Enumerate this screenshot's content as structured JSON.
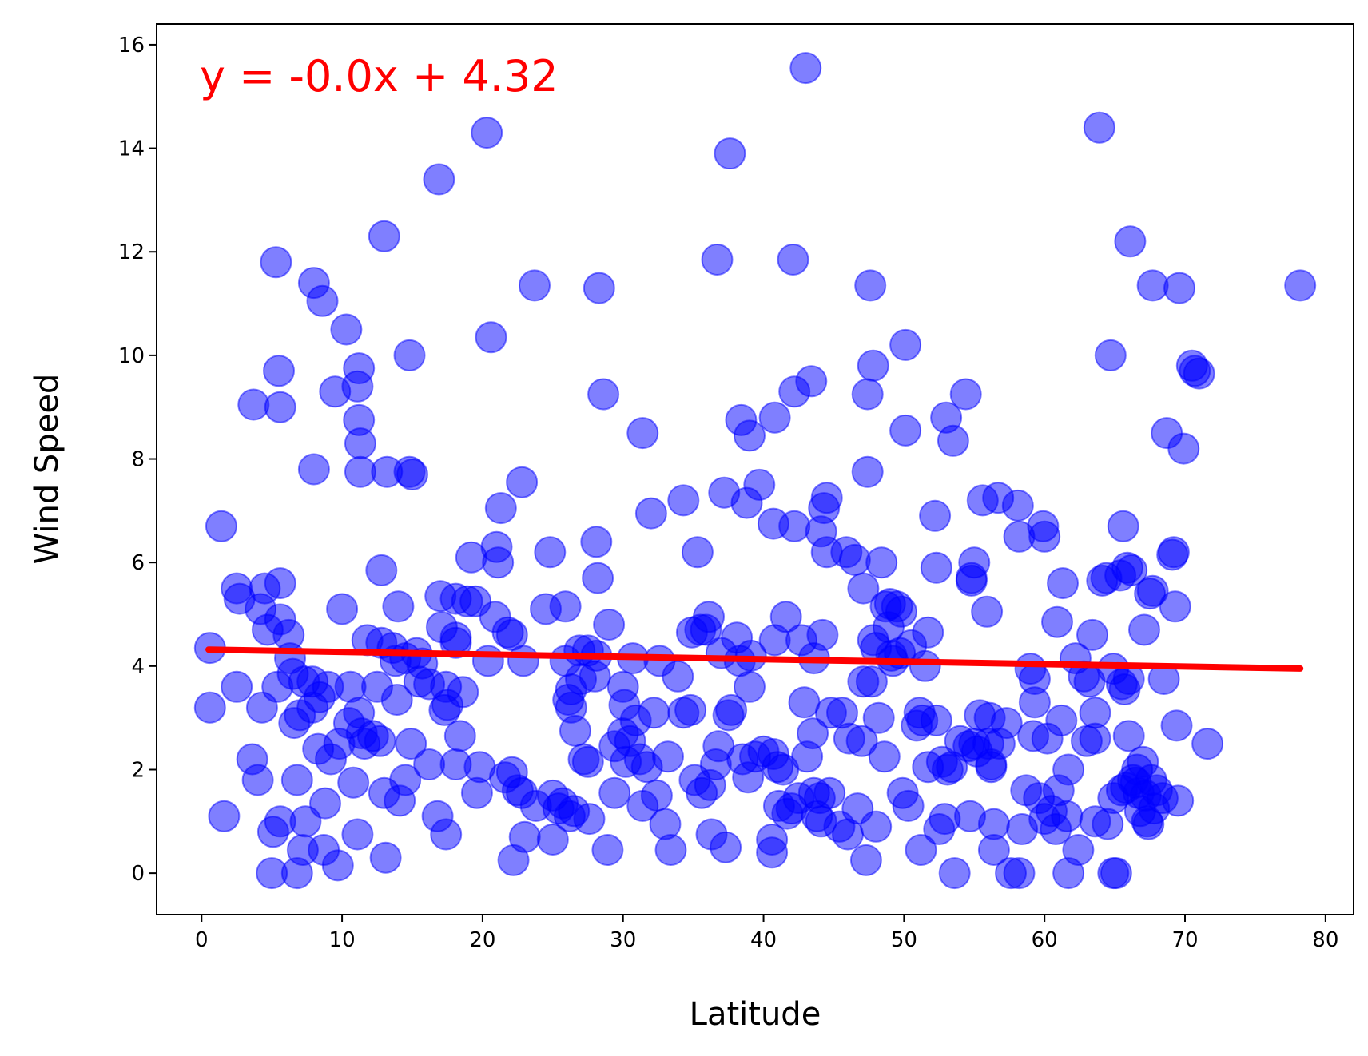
{
  "chart_data": {
    "type": "scatter",
    "title": "",
    "xlabel": "Latitude",
    "ylabel": "Wind Speed",
    "xlim": [
      -3.2,
      82
    ],
    "ylim": [
      -0.8,
      16.4
    ],
    "xticks": [
      0,
      10,
      20,
      30,
      40,
      50,
      60,
      70,
      80
    ],
    "yticks": [
      0,
      2,
      4,
      6,
      8,
      10,
      12,
      14,
      16
    ],
    "grid": false,
    "legend": "none",
    "annotation": "y = -0.0x + 4.32",
    "colors": {
      "points": "#0000ff",
      "regression": "#ff0000",
      "annotation": "#ff0000"
    },
    "regression": {
      "slope": -0.0047,
      "intercept": 4.32,
      "x_range": [
        0.5,
        78.2
      ]
    },
    "points": [
      [
        0.6,
        4.35
      ],
      [
        1.4,
        6.7
      ],
      [
        1.6,
        1.1
      ],
      [
        0.6,
        3.2
      ],
      [
        2.5,
        5.5
      ],
      [
        2.7,
        5.3
      ],
      [
        2.5,
        3.6
      ],
      [
        3.6,
        2.2
      ],
      [
        3.7,
        9.05
      ],
      [
        4.0,
        1.8
      ],
      [
        4.2,
        5.1
      ],
      [
        4.3,
        3.2
      ],
      [
        4.5,
        5.5
      ],
      [
        4.7,
        4.7
      ],
      [
        5.0,
        0.0
      ],
      [
        5.1,
        0.8
      ],
      [
        5.3,
        11.8
      ],
      [
        5.4,
        3.6
      ],
      [
        5.5,
        9.7
      ],
      [
        5.6,
        9.0
      ],
      [
        5.6,
        5.6
      ],
      [
        5.6,
        4.9
      ],
      [
        5.6,
        1.0
      ],
      [
        6.2,
        4.6
      ],
      [
        6.3,
        4.15
      ],
      [
        6.5,
        3.85
      ],
      [
        6.6,
        2.9
      ],
      [
        6.8,
        0.0
      ],
      [
        6.8,
        1.8
      ],
      [
        7.0,
        3.05
      ],
      [
        7.2,
        0.45
      ],
      [
        7.3,
        3.7
      ],
      [
        7.4,
        1.0
      ],
      [
        7.9,
        3.7
      ],
      [
        7.9,
        3.2
      ],
      [
        8.0,
        11.4
      ],
      [
        8.0,
        7.8
      ],
      [
        8.3,
        2.4
      ],
      [
        8.4,
        3.4
      ],
      [
        8.6,
        11.05
      ],
      [
        8.7,
        0.45
      ],
      [
        9.0,
        3.6
      ],
      [
        8.8,
        1.35
      ],
      [
        9.2,
        2.2
      ],
      [
        9.5,
        9.3
      ],
      [
        9.8,
        2.5
      ],
      [
        9.7,
        0.15
      ],
      [
        10.0,
        5.1
      ],
      [
        10.3,
        10.5
      ],
      [
        10.5,
        2.9
      ],
      [
        10.6,
        3.6
      ],
      [
        10.8,
        1.75
      ],
      [
        11.1,
        9.4
      ],
      [
        11.1,
        0.75
      ],
      [
        11.2,
        9.75
      ],
      [
        11.2,
        8.75
      ],
      [
        11.3,
        8.3
      ],
      [
        11.3,
        7.75
      ],
      [
        11.2,
        3.1
      ],
      [
        11.4,
        2.7
      ],
      [
        11.6,
        2.5
      ],
      [
        11.8,
        4.5
      ],
      [
        12.2,
        2.65
      ],
      [
        12.5,
        3.6
      ],
      [
        12.7,
        2.55
      ],
      [
        12.8,
        5.85
      ],
      [
        12.8,
        4.45
      ],
      [
        13.0,
        12.3
      ],
      [
        13.1,
        0.3
      ],
      [
        13.0,
        1.55
      ],
      [
        13.2,
        7.75
      ],
      [
        13.6,
        4.35
      ],
      [
        13.8,
        4.1
      ],
      [
        13.9,
        3.35
      ],
      [
        14.0,
        5.15
      ],
      [
        14.1,
        1.4
      ],
      [
        14.5,
        4.15
      ],
      [
        14.5,
        1.8
      ],
      [
        14.8,
        7.75
      ],
      [
        14.8,
        10.0
      ],
      [
        14.9,
        2.5
      ],
      [
        15.0,
        7.7
      ],
      [
        15.3,
        4.25
      ],
      [
        15.5,
        3.7
      ],
      [
        15.7,
        4.05
      ],
      [
        16.2,
        2.1
      ],
      [
        16.2,
        3.65
      ],
      [
        16.8,
        1.1
      ],
      [
        16.9,
        13.4
      ],
      [
        17.0,
        5.35
      ],
      [
        17.1,
        4.75
      ],
      [
        17.3,
        3.15
      ],
      [
        17.4,
        3.6
      ],
      [
        17.4,
        0.75
      ],
      [
        17.5,
        3.25
      ],
      [
        18.1,
        5.3
      ],
      [
        18.1,
        4.55
      ],
      [
        18.1,
        4.45
      ],
      [
        18.1,
        2.1
      ],
      [
        18.4,
        2.65
      ],
      [
        18.6,
        3.5
      ],
      [
        18.9,
        5.25
      ],
      [
        19.2,
        6.1
      ],
      [
        19.5,
        5.25
      ],
      [
        19.6,
        1.55
      ],
      [
        19.8,
        2.05
      ],
      [
        20.3,
        14.3
      ],
      [
        20.4,
        4.1
      ],
      [
        20.6,
        10.35
      ],
      [
        20.9,
        4.95
      ],
      [
        21.0,
        6.3
      ],
      [
        21.1,
        6.0
      ],
      [
        21.3,
        7.05
      ],
      [
        21.6,
        1.85
      ],
      [
        21.8,
        4.65
      ],
      [
        22.1,
        4.6
      ],
      [
        22.1,
        1.95
      ],
      [
        22.2,
        0.25
      ],
      [
        22.5,
        1.6
      ],
      [
        22.8,
        1.55
      ],
      [
        22.8,
        7.55
      ],
      [
        22.9,
        4.1
      ],
      [
        23.0,
        0.7
      ],
      [
        23.7,
        11.35
      ],
      [
        23.8,
        1.3
      ],
      [
        24.5,
        5.1
      ],
      [
        24.8,
        6.2
      ],
      [
        25.0,
        1.5
      ],
      [
        25.0,
        0.65
      ],
      [
        25.4,
        1.25
      ],
      [
        25.7,
        1.35
      ],
      [
        25.9,
        4.1
      ],
      [
        25.9,
        5.15
      ],
      [
        26.1,
        3.35
      ],
      [
        26.3,
        3.55
      ],
      [
        26.3,
        3.2
      ],
      [
        26.2,
        1.1
      ],
      [
        26.5,
        1.2
      ],
      [
        26.6,
        2.75
      ],
      [
        26.9,
        4.3
      ],
      [
        27.0,
        3.75
      ],
      [
        27.2,
        2.2
      ],
      [
        27.5,
        2.15
      ],
      [
        27.5,
        4.3
      ],
      [
        27.6,
        1.05
      ],
      [
        28.0,
        3.8
      ],
      [
        28.1,
        6.4
      ],
      [
        28.1,
        4.2
      ],
      [
        28.2,
        5.7
      ],
      [
        28.3,
        11.3
      ],
      [
        28.6,
        9.25
      ],
      [
        28.9,
        0.45
      ],
      [
        29.0,
        4.8
      ],
      [
        29.4,
        2.45
      ],
      [
        29.4,
        1.55
      ],
      [
        30.0,
        2.7
      ],
      [
        30.0,
        3.6
      ],
      [
        30.1,
        3.25
      ],
      [
        30.2,
        2.15
      ],
      [
        30.5,
        2.55
      ],
      [
        30.7,
        4.15
      ],
      [
        30.9,
        2.95
      ],
      [
        31.2,
        2.2
      ],
      [
        31.4,
        8.5
      ],
      [
        31.4,
        1.3
      ],
      [
        31.7,
        2.05
      ],
      [
        32.0,
        6.95
      ],
      [
        32.2,
        3.1
      ],
      [
        32.4,
        1.5
      ],
      [
        32.6,
        4.1
      ],
      [
        33.0,
        0.95
      ],
      [
        33.2,
        2.25
      ],
      [
        33.4,
        0.45
      ],
      [
        33.9,
        3.8
      ],
      [
        34.3,
        3.1
      ],
      [
        34.3,
        7.2
      ],
      [
        34.8,
        3.15
      ],
      [
        34.9,
        4.65
      ],
      [
        35.1,
        1.8
      ],
      [
        35.3,
        6.2
      ],
      [
        35.5,
        4.7
      ],
      [
        35.6,
        1.55
      ],
      [
        35.9,
        4.7
      ],
      [
        36.1,
        4.95
      ],
      [
        36.2,
        1.7
      ],
      [
        36.3,
        0.75
      ],
      [
        36.6,
        2.1
      ],
      [
        36.8,
        2.45
      ],
      [
        36.7,
        11.85
      ],
      [
        37.0,
        4.25
      ],
      [
        37.2,
        7.35
      ],
      [
        37.3,
        0.5
      ],
      [
        37.5,
        3.05
      ],
      [
        37.6,
        13.9
      ],
      [
        37.7,
        3.15
      ],
      [
        38.1,
        4.55
      ],
      [
        38.3,
        4.1
      ],
      [
        38.4,
        8.75
      ],
      [
        38.5,
        2.2
      ],
      [
        38.8,
        7.15
      ],
      [
        38.9,
        1.85
      ],
      [
        39.0,
        8.45
      ],
      [
        39.0,
        3.6
      ],
      [
        39.1,
        4.2
      ],
      [
        39.4,
        2.25
      ],
      [
        39.7,
        7.5
      ],
      [
        40.0,
        2.35
      ],
      [
        40.6,
        0.4
      ],
      [
        40.6,
        0.65
      ],
      [
        40.7,
        6.75
      ],
      [
        40.8,
        4.5
      ],
      [
        40.7,
        2.3
      ],
      [
        40.8,
        8.8
      ],
      [
        41.0,
        2.05
      ],
      [
        41.1,
        1.3
      ],
      [
        41.4,
        2.0
      ],
      [
        41.6,
        4.95
      ],
      [
        41.7,
        1.15
      ],
      [
        42.0,
        1.25
      ],
      [
        42.1,
        11.85
      ],
      [
        42.2,
        9.3
      ],
      [
        42.2,
        6.7
      ],
      [
        42.5,
        1.45
      ],
      [
        42.7,
        4.5
      ],
      [
        42.9,
        3.3
      ],
      [
        43.0,
        15.55
      ],
      [
        43.1,
        2.25
      ],
      [
        43.4,
        9.5
      ],
      [
        43.5,
        2.7
      ],
      [
        43.6,
        1.55
      ],
      [
        43.6,
        4.15
      ],
      [
        43.8,
        1.1
      ],
      [
        44.0,
        1.45
      ],
      [
        44.1,
        6.6
      ],
      [
        44.1,
        1.0
      ],
      [
        44.2,
        4.6
      ],
      [
        44.3,
        7.05
      ],
      [
        44.5,
        7.25
      ],
      [
        44.5,
        6.2
      ],
      [
        44.7,
        1.55
      ],
      [
        44.8,
        3.1
      ],
      [
        45.4,
        0.9
      ],
      [
        45.6,
        3.1
      ],
      [
        45.9,
        6.2
      ],
      [
        46.0,
        0.75
      ],
      [
        46.1,
        2.6
      ],
      [
        46.5,
        6.05
      ],
      [
        46.7,
        1.25
      ],
      [
        47.0,
        2.55
      ],
      [
        47.1,
        5.5
      ],
      [
        47.1,
        3.7
      ],
      [
        47.3,
        0.25
      ],
      [
        47.4,
        9.25
      ],
      [
        47.4,
        7.75
      ],
      [
        47.6,
        11.35
      ],
      [
        47.7,
        3.7
      ],
      [
        47.8,
        4.5
      ],
      [
        47.8,
        9.8
      ],
      [
        48.0,
        4.35
      ],
      [
        48.0,
        0.9
      ],
      [
        48.2,
        3.0
      ],
      [
        48.4,
        6.0
      ],
      [
        48.6,
        2.25
      ],
      [
        48.7,
        5.15
      ],
      [
        48.9,
        4.75
      ],
      [
        49.0,
        5.2
      ],
      [
        49.1,
        4.2
      ],
      [
        49.2,
        4.1
      ],
      [
        49.5,
        5.15
      ],
      [
        49.7,
        4.25
      ],
      [
        49.8,
        5.05
      ],
      [
        49.9,
        1.55
      ],
      [
        50.1,
        10.2
      ],
      [
        50.1,
        8.55
      ],
      [
        50.3,
        1.3
      ],
      [
        50.5,
        4.4
      ],
      [
        50.9,
        2.85
      ],
      [
        51.1,
        3.1
      ],
      [
        51.2,
        0.45
      ],
      [
        51.3,
        2.95
      ],
      [
        51.5,
        4.0
      ],
      [
        51.7,
        4.65
      ],
      [
        51.7,
        2.05
      ],
      [
        52.2,
        6.9
      ],
      [
        52.3,
        5.9
      ],
      [
        52.3,
        2.95
      ],
      [
        52.5,
        0.85
      ],
      [
        52.7,
        2.15
      ],
      [
        52.9,
        1.05
      ],
      [
        53.0,
        8.8
      ],
      [
        53.1,
        2.0
      ],
      [
        53.4,
        2.05
      ],
      [
        53.5,
        8.35
      ],
      [
        53.6,
        0.0
      ],
      [
        54.0,
        2.55
      ],
      [
        54.4,
        9.25
      ],
      [
        54.6,
        2.45
      ],
      [
        54.7,
        1.1
      ],
      [
        54.8,
        5.65
      ],
      [
        54.8,
        5.7
      ],
      [
        55.0,
        6.0
      ],
      [
        55.0,
        2.5
      ],
      [
        55.2,
        2.35
      ],
      [
        55.4,
        3.05
      ],
      [
        55.6,
        7.2
      ],
      [
        55.9,
        5.05
      ],
      [
        56.0,
        2.5
      ],
      [
        56.1,
        3.0
      ],
      [
        56.2,
        2.05
      ],
      [
        56.2,
        2.1
      ],
      [
        56.4,
        0.95
      ],
      [
        56.4,
        0.45
      ],
      [
        56.7,
        7.25
      ],
      [
        56.8,
        2.5
      ],
      [
        57.3,
        2.9
      ],
      [
        57.6,
        0.0
      ],
      [
        58.1,
        7.1
      ],
      [
        58.2,
        0.0
      ],
      [
        58.2,
        6.5
      ],
      [
        58.4,
        0.85
      ],
      [
        58.7,
        1.6
      ],
      [
        59.0,
        3.95
      ],
      [
        59.2,
        2.65
      ],
      [
        59.3,
        3.75
      ],
      [
        59.3,
        3.3
      ],
      [
        59.6,
        1.45
      ],
      [
        59.9,
        6.7
      ],
      [
        60.0,
        6.5
      ],
      [
        60.0,
        1.05
      ],
      [
        60.2,
        2.6
      ],
      [
        60.5,
        1.2
      ],
      [
        60.8,
        0.85
      ],
      [
        60.9,
        4.85
      ],
      [
        61.0,
        1.6
      ],
      [
        61.2,
        2.95
      ],
      [
        61.3,
        5.6
      ],
      [
        61.7,
        2.0
      ],
      [
        61.6,
        1.1
      ],
      [
        61.7,
        0.0
      ],
      [
        62.2,
        4.15
      ],
      [
        62.4,
        0.45
      ],
      [
        62.8,
        3.8
      ],
      [
        63.0,
        2.55
      ],
      [
        63.2,
        3.7
      ],
      [
        63.4,
        4.6
      ],
      [
        63.6,
        1.0
      ],
      [
        63.6,
        3.1
      ],
      [
        63.6,
        2.6
      ],
      [
        63.9,
        14.4
      ],
      [
        64.1,
        5.65
      ],
      [
        64.4,
        5.7
      ],
      [
        64.5,
        0.95
      ],
      [
        64.7,
        10.0
      ],
      [
        64.9,
        0.0
      ],
      [
        64.9,
        3.95
      ],
      [
        64.9,
        1.45
      ],
      [
        65.1,
        0.0
      ],
      [
        65.4,
        5.75
      ],
      [
        65.5,
        3.65
      ],
      [
        65.5,
        1.6
      ],
      [
        65.6,
        6.7
      ],
      [
        65.7,
        3.55
      ],
      [
        65.8,
        1.65
      ],
      [
        65.9,
        5.9
      ],
      [
        66.0,
        3.75
      ],
      [
        66.0,
        2.65
      ],
      [
        66.2,
        5.85
      ],
      [
        66.1,
        12.2
      ],
      [
        66.3,
        1.8
      ],
      [
        66.5,
        1.75
      ],
      [
        66.6,
        2.0
      ],
      [
        66.7,
        1.55
      ],
      [
        66.8,
        1.2
      ],
      [
        67.0,
        2.15
      ],
      [
        67.1,
        4.7
      ],
      [
        67.2,
        1.5
      ],
      [
        67.3,
        1.0
      ],
      [
        67.4,
        0.95
      ],
      [
        67.5,
        5.4
      ],
      [
        67.6,
        1.8
      ],
      [
        67.7,
        5.45
      ],
      [
        67.7,
        11.35
      ],
      [
        67.8,
        1.25
      ],
      [
        68.0,
        1.6
      ],
      [
        68.4,
        1.45
      ],
      [
        68.5,
        3.75
      ],
      [
        68.7,
        8.5
      ],
      [
        69.1,
        6.15
      ],
      [
        69.2,
        6.2
      ],
      [
        69.3,
        5.15
      ],
      [
        69.4,
        2.85
      ],
      [
        69.5,
        1.4
      ],
      [
        69.6,
        11.3
      ],
      [
        69.9,
        8.2
      ],
      [
        70.5,
        9.8
      ],
      [
        70.7,
        9.7
      ],
      [
        71.0,
        9.65
      ],
      [
        71.6,
        2.5
      ],
      [
        78.2,
        11.35
      ]
    ]
  }
}
